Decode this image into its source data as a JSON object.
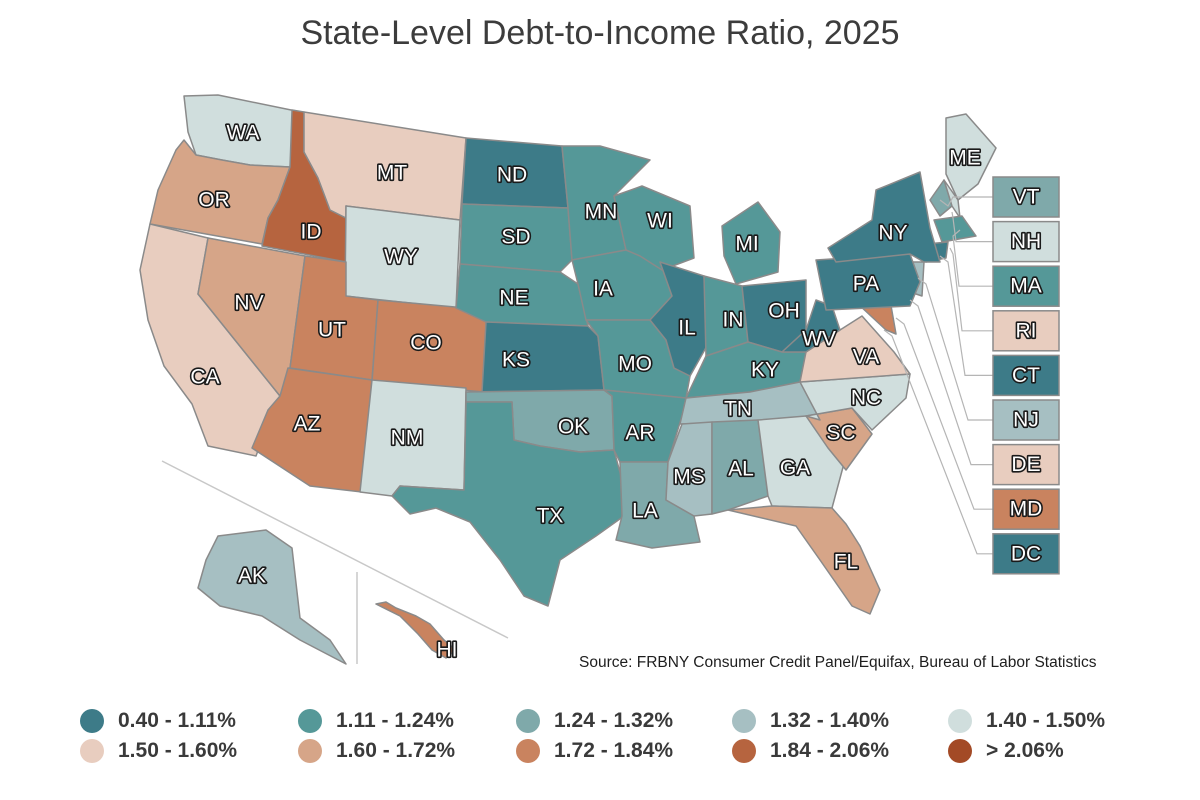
{
  "title": "State-Level Debt-to-Income Ratio, 2025",
  "source": "Source: FRBNY Consumer Credit Panel/Equifax, Bureau of Labor Statistics",
  "legend": [
    {
      "label": "0.40 - 1.11%",
      "color": "#3d7b88"
    },
    {
      "label": "1.11 - 1.24%",
      "color": "#559898"
    },
    {
      "label": "1.24 - 1.32%",
      "color": "#7fa9aa"
    },
    {
      "label": "1.32 - 1.40%",
      "color": "#a6bfc2"
    },
    {
      "label": "1.40 - 1.50%",
      "color": "#d0dedd"
    },
    {
      "label": "1.50 - 1.60%",
      "color": "#e8cdbf"
    },
    {
      "label": "1.60 - 1.72%",
      "color": "#d6a588"
    },
    {
      "label": "1.72 - 1.84%",
      "color": "#c9835f"
    },
    {
      "label": "1.84 - 2.06%",
      "color": "#b6643f"
    },
    {
      "label": "> 2.06%",
      "color": "#a34a26"
    }
  ],
  "states": {
    "WA": {
      "label": "WA",
      "bin": "1.40 - 1.50%"
    },
    "OR": {
      "label": "OR",
      "bin": "1.60 - 1.72%"
    },
    "CA": {
      "label": "CA",
      "bin": "1.50 - 1.60%"
    },
    "ID": {
      "label": "ID",
      "bin": "1.84 - 2.06%"
    },
    "NV": {
      "label": "NV",
      "bin": "1.60 - 1.72%"
    },
    "MT": {
      "label": "MT",
      "bin": "1.50 - 1.60%"
    },
    "WY": {
      "label": "WY",
      "bin": "1.40 - 1.50%"
    },
    "UT": {
      "label": "UT",
      "bin": "1.72 - 1.84%"
    },
    "CO": {
      "label": "CO",
      "bin": "1.72 - 1.84%"
    },
    "AZ": {
      "label": "AZ",
      "bin": "1.72 - 1.84%"
    },
    "NM": {
      "label": "NM",
      "bin": "1.40 - 1.50%"
    },
    "ND": {
      "label": "ND",
      "bin": "0.40 - 1.11%"
    },
    "SD": {
      "label": "SD",
      "bin": "1.11 - 1.24%"
    },
    "NE": {
      "label": "NE",
      "bin": "1.11 - 1.24%"
    },
    "KS": {
      "label": "KS",
      "bin": "0.40 - 1.11%"
    },
    "OK": {
      "label": "OK",
      "bin": "1.24 - 1.32%"
    },
    "TX": {
      "label": "TX",
      "bin": "1.11 - 1.24%"
    },
    "MN": {
      "label": "MN",
      "bin": "1.11 - 1.24%"
    },
    "IA": {
      "label": "IA",
      "bin": "1.11 - 1.24%"
    },
    "MO": {
      "label": "MO",
      "bin": "1.11 - 1.24%"
    },
    "AR": {
      "label": "AR",
      "bin": "1.11 - 1.24%"
    },
    "LA": {
      "label": "LA",
      "bin": "1.24 - 1.32%"
    },
    "WI": {
      "label": "WI",
      "bin": "1.11 - 1.24%"
    },
    "IL": {
      "label": "IL",
      "bin": "0.40 - 1.11%"
    },
    "MI": {
      "label": "MI",
      "bin": "1.11 - 1.24%"
    },
    "IN": {
      "label": "IN",
      "bin": "1.11 - 1.24%"
    },
    "OH": {
      "label": "OH",
      "bin": "0.40 - 1.11%"
    },
    "KY": {
      "label": "KY",
      "bin": "1.11 - 1.24%"
    },
    "TN": {
      "label": "TN",
      "bin": "1.32 - 1.40%"
    },
    "MS": {
      "label": "MS",
      "bin": "1.32 - 1.40%"
    },
    "AL": {
      "label": "AL",
      "bin": "1.24 - 1.32%"
    },
    "GA": {
      "label": "GA",
      "bin": "1.40 - 1.50%"
    },
    "FL": {
      "label": "FL",
      "bin": "1.60 - 1.72%"
    },
    "SC": {
      "label": "SC",
      "bin": "1.60 - 1.72%"
    },
    "NC": {
      "label": "NC",
      "bin": "1.40 - 1.50%"
    },
    "VA": {
      "label": "VA",
      "bin": "1.50 - 1.60%"
    },
    "WV": {
      "label": "WV",
      "bin": "0.40 - 1.11%"
    },
    "PA": {
      "label": "PA",
      "bin": "0.40 - 1.11%"
    },
    "NY": {
      "label": "NY",
      "bin": "0.40 - 1.11%"
    },
    "ME": {
      "label": "ME",
      "bin": "1.40 - 1.50%"
    },
    "AK": {
      "label": "AK",
      "bin": "1.32 - 1.40%"
    },
    "HI": {
      "label": "HI",
      "bin": "1.72 - 1.84%"
    }
  },
  "callouts": [
    {
      "label": "VT",
      "bin": "1.24 - 1.32%"
    },
    {
      "label": "NH",
      "bin": "1.40 - 1.50%"
    },
    {
      "label": "MA",
      "bin": "1.11 - 1.24%"
    },
    {
      "label": "RI",
      "bin": "1.50 - 1.60%"
    },
    {
      "label": "CT",
      "bin": "0.40 - 1.11%"
    },
    {
      "label": "NJ",
      "bin": "1.32 - 1.40%"
    },
    {
      "label": "DE",
      "bin": "1.50 - 1.60%"
    },
    {
      "label": "MD",
      "bin": "1.72 - 1.84%"
    },
    {
      "label": "DC",
      "bin": "0.40 - 1.11%"
    }
  ]
}
